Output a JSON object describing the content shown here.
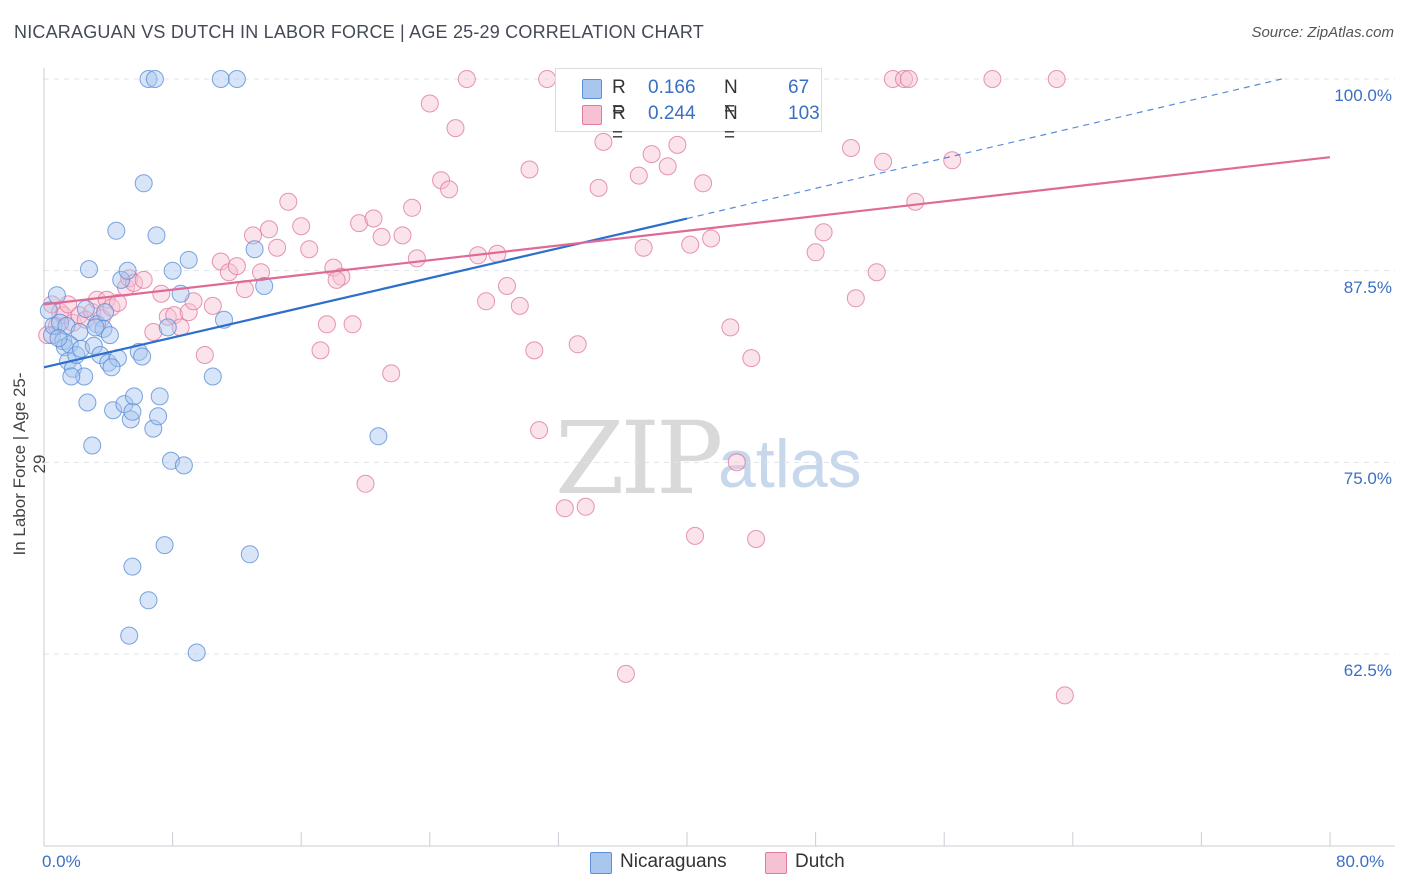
{
  "title": "NICARAGUAN VS DUTCH IN LABOR FORCE | AGE 25-29 CORRELATION CHART",
  "source": "Source: ZipAtlas.com",
  "watermark": {
    "zip": "ZIP",
    "atlas": "atlas"
  },
  "legend": {
    "r_label": "R =",
    "n_label": "N =",
    "nicaraguans": {
      "r": "0.166",
      "n": "67"
    },
    "dutch": {
      "r": "0.244",
      "n": "103"
    }
  },
  "chart_data": {
    "type": "scatter",
    "title": "NICARAGUAN VS DUTCH IN LABOR FORCE | AGE 25-29 CORRELATION CHART",
    "xlabel": "",
    "ylabel": "In Labor Force | Age 25-29",
    "xlim": [
      0,
      80
    ],
    "ylim": [
      50,
      102
    ],
    "x_tick_labels": [
      "0.0%",
      "80.0%"
    ],
    "y_tick_labels": [
      "100.0%",
      "87.5%",
      "75.0%",
      "62.5%"
    ],
    "y_ticks": [
      100,
      87.5,
      75,
      62.5
    ],
    "grid": true,
    "legend_position": "bottom-center",
    "colors": {
      "nicaraguans": "#5b8fd6",
      "nicaraguans_fill": "#a9c6ef",
      "dutch": "#e07a9f",
      "dutch_fill": "#f6c1d2",
      "blue_line": "#2f6fcc",
      "pink_line": "#e06a96"
    },
    "series": [
      {
        "name": "Nicaraguans",
        "trend": {
          "x": [
            0,
            40
          ],
          "y": [
            81.2,
            90.9
          ]
        },
        "trend_extension": {
          "x": [
            40,
            77
          ],
          "y": [
            90.9,
            100.0
          ]
        },
        "points": [
          [
            0.3,
            84.9
          ],
          [
            0.5,
            83.3
          ],
          [
            0.6,
            83.9
          ],
          [
            0.8,
            85.9
          ],
          [
            1.0,
            84.1
          ],
          [
            1.2,
            82.9
          ],
          [
            1.3,
            82.5
          ],
          [
            1.4,
            83.9
          ],
          [
            1.5,
            81.6
          ],
          [
            1.6,
            82.7
          ],
          [
            1.8,
            81.1
          ],
          [
            2.0,
            82.0
          ],
          [
            2.3,
            82.4
          ],
          [
            2.5,
            80.6
          ],
          [
            2.6,
            85.0
          ],
          [
            2.7,
            78.9
          ],
          [
            2.8,
            87.6
          ],
          [
            3.0,
            76.1
          ],
          [
            3.1,
            82.6
          ],
          [
            3.3,
            84.0
          ],
          [
            3.5,
            82.0
          ],
          [
            3.7,
            83.7
          ],
          [
            3.8,
            84.8
          ],
          [
            4.0,
            81.5
          ],
          [
            4.1,
            83.3
          ],
          [
            4.3,
            78.4
          ],
          [
            4.5,
            90.1
          ],
          [
            4.6,
            81.8
          ],
          [
            4.8,
            86.9
          ],
          [
            5.0,
            78.8
          ],
          [
            5.2,
            87.5
          ],
          [
            5.4,
            77.8
          ],
          [
            5.5,
            78.3
          ],
          [
            5.6,
            79.3
          ],
          [
            5.9,
            82.2
          ],
          [
            6.1,
            81.9
          ],
          [
            6.2,
            93.2
          ],
          [
            6.5,
            66.0
          ],
          [
            6.8,
            77.2
          ],
          [
            7.0,
            89.8
          ],
          [
            7.2,
            79.3
          ],
          [
            7.5,
            69.6
          ],
          [
            7.7,
            83.8
          ],
          [
            7.9,
            75.1
          ],
          [
            8.0,
            87.5
          ],
          [
            8.5,
            86.0
          ],
          [
            8.7,
            74.8
          ],
          [
            9.5,
            62.6
          ],
          [
            10.5,
            80.6
          ],
          [
            11.2,
            84.3
          ],
          [
            12.8,
            69.0
          ],
          [
            13.1,
            88.9
          ],
          [
            13.7,
            86.5
          ],
          [
            20.8,
            76.7
          ],
          [
            6.5,
            100.0
          ],
          [
            6.9,
            100.0
          ],
          [
            11.0,
            100.0
          ],
          [
            12.0,
            100.0
          ],
          [
            5.3,
            63.7
          ],
          [
            5.5,
            68.2
          ],
          [
            9.0,
            88.2
          ],
          [
            1.7,
            80.6
          ],
          [
            0.9,
            83.1
          ],
          [
            2.2,
            83.5
          ],
          [
            7.1,
            78.0
          ],
          [
            3.2,
            83.8
          ],
          [
            4.2,
            81.2
          ]
        ]
      },
      {
        "name": "Dutch",
        "trend": {
          "x": [
            0,
            80
          ],
          "y": [
            85.3,
            94.9
          ]
        },
        "points": [
          [
            0.2,
            83.3
          ],
          [
            0.5,
            85.3
          ],
          [
            0.8,
            83.9
          ],
          [
            1.0,
            84.8
          ],
          [
            1.2,
            84.6
          ],
          [
            1.5,
            85.3
          ],
          [
            1.8,
            84.1
          ],
          [
            2.2,
            84.6
          ],
          [
            2.6,
            84.3
          ],
          [
            3.0,
            84.8
          ],
          [
            3.3,
            85.6
          ],
          [
            3.6,
            84.4
          ],
          [
            3.9,
            85.6
          ],
          [
            4.2,
            85.1
          ],
          [
            4.6,
            85.4
          ],
          [
            5.1,
            86.4
          ],
          [
            5.3,
            87.0
          ],
          [
            5.6,
            86.7
          ],
          [
            6.2,
            86.9
          ],
          [
            6.8,
            83.5
          ],
          [
            7.3,
            86.0
          ],
          [
            7.7,
            84.5
          ],
          [
            8.1,
            84.6
          ],
          [
            8.5,
            83.8
          ],
          [
            9.0,
            84.8
          ],
          [
            9.3,
            85.5
          ],
          [
            10.0,
            82.0
          ],
          [
            10.5,
            85.2
          ],
          [
            11.0,
            88.1
          ],
          [
            11.5,
            87.4
          ],
          [
            12.0,
            87.8
          ],
          [
            12.5,
            86.3
          ],
          [
            13.0,
            89.8
          ],
          [
            13.5,
            87.4
          ],
          [
            14.0,
            90.2
          ],
          [
            14.5,
            89.0
          ],
          [
            15.2,
            92.0
          ],
          [
            16.0,
            90.4
          ],
          [
            16.5,
            88.9
          ],
          [
            17.2,
            82.3
          ],
          [
            17.6,
            84.0
          ],
          [
            18.0,
            87.7
          ],
          [
            18.5,
            87.1
          ],
          [
            19.2,
            84.0
          ],
          [
            19.6,
            90.6
          ],
          [
            20.0,
            73.6
          ],
          [
            20.5,
            90.9
          ],
          [
            21.0,
            89.7
          ],
          [
            21.6,
            80.8
          ],
          [
            22.3,
            89.8
          ],
          [
            22.9,
            91.6
          ],
          [
            23.2,
            88.3
          ],
          [
            24.0,
            98.4
          ],
          [
            24.7,
            93.4
          ],
          [
            25.2,
            92.8
          ],
          [
            25.6,
            96.8
          ],
          [
            26.3,
            100.0
          ],
          [
            27.0,
            88.5
          ],
          [
            27.5,
            85.5
          ],
          [
            28.2,
            88.6
          ],
          [
            28.8,
            86.5
          ],
          [
            29.6,
            85.2
          ],
          [
            30.2,
            94.1
          ],
          [
            30.5,
            82.3
          ],
          [
            30.8,
            77.1
          ],
          [
            31.3,
            100.0
          ],
          [
            32.4,
            72.0
          ],
          [
            32.8,
            100.0
          ],
          [
            33.2,
            82.7
          ],
          [
            33.7,
            72.1
          ],
          [
            34.5,
            92.9
          ],
          [
            34.8,
            95.9
          ],
          [
            35.2,
            100.0
          ],
          [
            36.2,
            61.2
          ],
          [
            37.0,
            93.7
          ],
          [
            37.3,
            89.0
          ],
          [
            37.8,
            95.1
          ],
          [
            38.8,
            94.3
          ],
          [
            39.4,
            95.7
          ],
          [
            40.2,
            89.2
          ],
          [
            40.5,
            70.2
          ],
          [
            41.0,
            93.2
          ],
          [
            41.5,
            89.6
          ],
          [
            42.7,
            83.8
          ],
          [
            43.1,
            75.0
          ],
          [
            44.0,
            81.8
          ],
          [
            44.3,
            70.0
          ],
          [
            48.0,
            88.7
          ],
          [
            48.5,
            90.0
          ],
          [
            50.2,
            95.5
          ],
          [
            50.5,
            85.7
          ],
          [
            51.8,
            87.4
          ],
          [
            52.2,
            94.6
          ],
          [
            52.8,
            100.0
          ],
          [
            53.5,
            100.0
          ],
          [
            53.8,
            100.0
          ],
          [
            54.2,
            92.0
          ],
          [
            56.5,
            94.7
          ],
          [
            59.0,
            100.0
          ],
          [
            63.0,
            100.0
          ],
          [
            63.5,
            59.8
          ],
          [
            37.6,
            100.0
          ],
          [
            18.2,
            86.9
          ]
        ]
      }
    ]
  }
}
